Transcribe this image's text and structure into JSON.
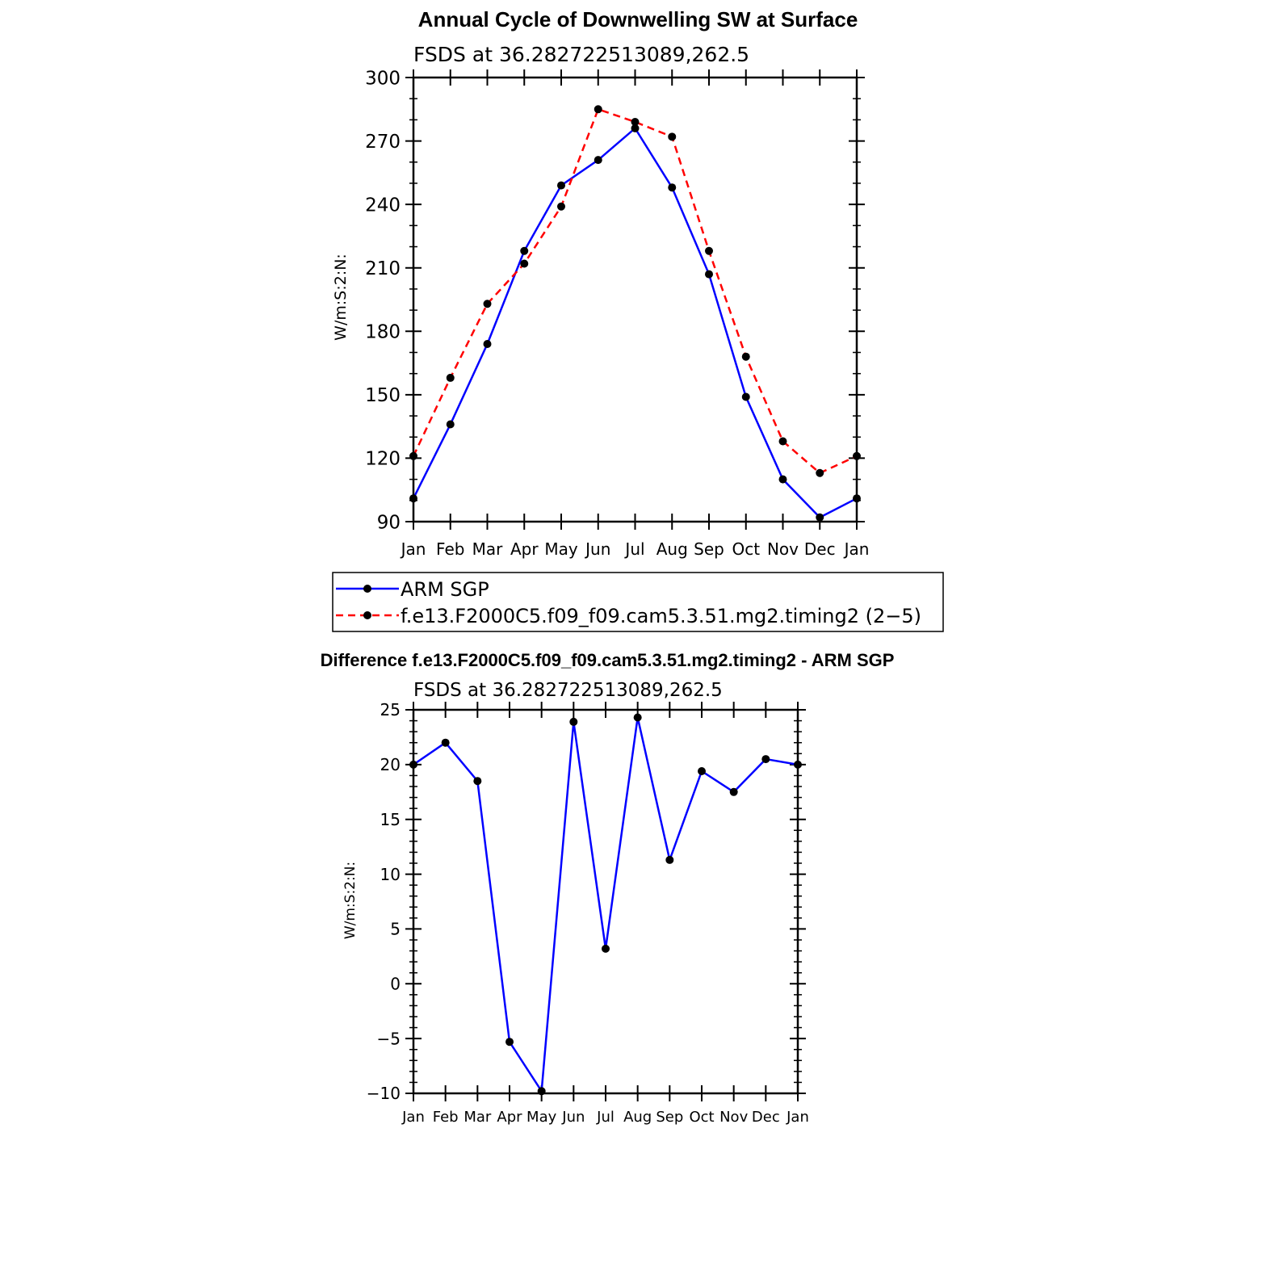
{
  "colors": {
    "obs": "#0000ff",
    "model": "#ff0000",
    "marker": "#000000",
    "axis": "#000000"
  },
  "chart_data": [
    {
      "type": "line",
      "title": "Annual Cycle of Downwelling SW at Surface",
      "subtitle": "FSDS at 36.282722513089,262.5",
      "ylabel": "W/m:S:2:N:",
      "xlabel": "",
      "categories": [
        "Jan",
        "Feb",
        "Mar",
        "Apr",
        "May",
        "Jun",
        "Jul",
        "Aug",
        "Sep",
        "Oct",
        "Nov",
        "Dec",
        "Jan"
      ],
      "ylim": [
        90,
        300
      ],
      "yticks": [
        "90",
        "120",
        "150",
        "180",
        "210",
        "240",
        "270",
        "300"
      ],
      "series": [
        {
          "name": "ARM SGP",
          "style": "solid",
          "color": "#0000ff",
          "values": [
            101,
            136,
            174,
            218,
            249,
            261,
            276,
            248,
            207,
            149,
            110,
            92,
            101
          ]
        },
        {
          "name": "f.e13.F2000C5.f09_f09.cam5.3.51.mg2.timing2 (2−5)",
          "style": "dashed",
          "color": "#ff0000",
          "values": [
            121,
            158,
            193,
            212,
            239,
            285,
            279,
            272,
            218,
            168,
            128,
            113,
            121
          ]
        }
      ],
      "legend": "bottom"
    },
    {
      "type": "line",
      "title": "Difference f.e13.F2000C5.f09_f09.cam5.3.51.mg2.timing2 - ARM SGP",
      "subtitle": "FSDS at 36.282722513089,262.5",
      "ylabel": "W/m:S:2:N:",
      "xlabel": "",
      "categories": [
        "Jan",
        "Feb",
        "Mar",
        "Apr",
        "May",
        "Jun",
        "Jul",
        "Aug",
        "Sep",
        "Oct",
        "Nov",
        "Dec",
        "Jan"
      ],
      "ylim": [
        -10,
        25
      ],
      "yticks": [
        "−10",
        "−5",
        "0",
        "5",
        "10",
        "15",
        "20",
        "25"
      ],
      "series": [
        {
          "style": "solid",
          "color": "#0000ff",
          "values": [
            20,
            22,
            18.5,
            -5.3,
            -9.8,
            23.9,
            3.2,
            24.3,
            11.3,
            19.4,
            17.5,
            20.5,
            20
          ]
        }
      ]
    }
  ]
}
